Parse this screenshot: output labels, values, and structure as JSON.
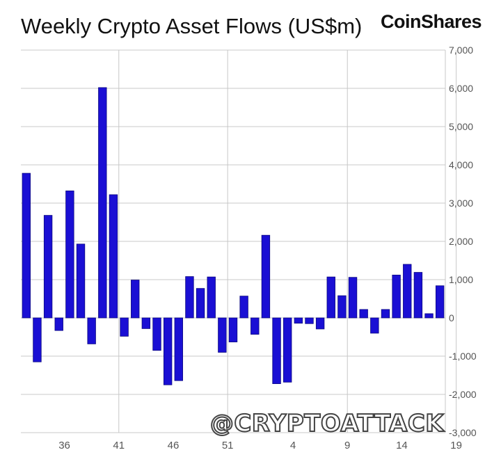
{
  "header": {
    "title": "Weekly Crypto Asset Flows (US$m)",
    "brand": "CoinShares"
  },
  "watermark": "@CRYPTOATTACK",
  "chart_data": {
    "type": "bar",
    "title": "Weekly Crypto Asset Flows (US$m)",
    "xlabel": "",
    "ylabel": "",
    "ylim": [
      -3000,
      7000
    ],
    "yticks": [
      "7,000",
      "6,000",
      "5,000",
      "4,000",
      "3,000",
      "2,000",
      "1,000",
      "0",
      "-1,000",
      "-2,000",
      "-3,000"
    ],
    "ytick_values": [
      7000,
      6000,
      5000,
      4000,
      3000,
      2000,
      1000,
      0,
      -1000,
      -2000,
      -3000
    ],
    "xtick_labels": [
      "36",
      "41",
      "46",
      "51",
      "4",
      "9",
      "14",
      "19"
    ],
    "xtick_week_index": [
      3,
      8,
      13,
      18,
      24,
      29,
      34,
      39
    ],
    "values": [
      3780,
      -1150,
      2680,
      -330,
      3320,
      1930,
      -680,
      6020,
      3220,
      -480,
      990,
      -280,
      -850,
      -1750,
      -1640,
      1080,
      770,
      1070,
      -900,
      -630,
      570,
      -430,
      2160,
      -1720,
      -1680,
      -140,
      -150,
      -290,
      1070,
      580,
      1060,
      220,
      -400,
      220,
      1120,
      1400,
      1190,
      110,
      840
    ],
    "bar_color": "#1a0fd4",
    "grid": true,
    "y_axis_position": "right"
  }
}
